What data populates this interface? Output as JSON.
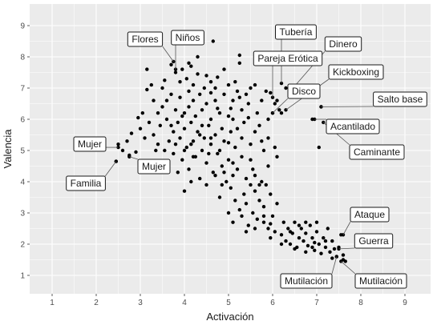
{
  "chart_data": {
    "type": "scatter",
    "xlabel": "Activación",
    "ylabel": "Valencia",
    "xlim": [
      0.3,
      9.5
    ],
    "ylim": [
      0.6,
      9.5
    ],
    "xticks": [
      1,
      2,
      3,
      4,
      5,
      6,
      7,
      8,
      9
    ],
    "yticks": [
      1,
      2,
      3,
      4,
      5,
      6,
      7,
      8,
      9
    ],
    "grid": true,
    "colors": {
      "panel": "#ebebeb",
      "grid": "#ffffff",
      "point": "#000000"
    },
    "labels": [
      {
        "text": "Flores",
        "x": 3.75,
        "y": 7.85
      },
      {
        "text": "Niños",
        "x": 3.8,
        "y": 7.6
      },
      {
        "text": "Tubería",
        "x": 6.2,
        "y": 7.15
      },
      {
        "text": "Dinero",
        "x": 6.4,
        "y": 6.9
      },
      {
        "text": "Pareja Erótica",
        "x": 6.0,
        "y": 6.7
      },
      {
        "text": "Kickboxing",
        "x": 6.3,
        "y": 6.3
      },
      {
        "text": "Disco",
        "x": 6.0,
        "y": 6.2
      },
      {
        "text": "Salto base",
        "x": 7.1,
        "y": 6.4
      },
      {
        "text": "Acantilado",
        "x": 6.95,
        "y": 6.0
      },
      {
        "text": "Caminante",
        "x": 7.15,
        "y": 5.9
      },
      {
        "text": "Mujer",
        "x": 2.5,
        "y": 5.1
      },
      {
        "text": "Mujer",
        "x": 2.75,
        "y": 4.8
      },
      {
        "text": "Familia",
        "x": 2.45,
        "y": 4.65
      },
      {
        "text": "Ataque",
        "x": 7.6,
        "y": 2.3
      },
      {
        "text": "Guerra",
        "x": 7.5,
        "y": 1.85
      },
      {
        "text": "Mutilación",
        "x": 7.45,
        "y": 1.6
      },
      {
        "text": "Mutilación",
        "x": 7.55,
        "y": 1.45
      }
    ],
    "points": [
      [
        2.5,
        5.2
      ],
      [
        2.45,
        4.65
      ],
      [
        2.6,
        5.0
      ],
      [
        2.7,
        5.3
      ],
      [
        2.75,
        4.85
      ],
      [
        2.8,
        5.55
      ],
      [
        2.9,
        4.95
      ],
      [
        2.95,
        6.05
      ],
      [
        3.0,
        5.7
      ],
      [
        3.05,
        6.2
      ],
      [
        3.1,
        5.4
      ],
      [
        3.15,
        6.95
      ],
      [
        3.15,
        7.6
      ],
      [
        3.2,
        5.9
      ],
      [
        3.25,
        7.1
      ],
      [
        3.3,
        6.6
      ],
      [
        3.35,
        4.6
      ],
      [
        3.4,
        5.2
      ],
      [
        3.45,
        5.8
      ],
      [
        3.5,
        6.4
      ],
      [
        3.55,
        5.0
      ],
      [
        3.55,
        7.25
      ],
      [
        3.6,
        6.0
      ],
      [
        3.65,
        5.3
      ],
      [
        3.7,
        7.75
      ],
      [
        3.7,
        6.8
      ],
      [
        3.75,
        5.6
      ],
      [
        3.75,
        4.9
      ],
      [
        3.8,
        7.5
      ],
      [
        3.8,
        6.3
      ],
      [
        3.85,
        5.9
      ],
      [
        3.85,
        4.3
      ],
      [
        3.9,
        7.2
      ],
      [
        3.9,
        6.7
      ],
      [
        3.9,
        5.4
      ],
      [
        3.95,
        4.7
      ],
      [
        3.95,
        7.6
      ],
      [
        4.0,
        6.2
      ],
      [
        4.0,
        5.7
      ],
      [
        4.0,
        3.7
      ],
      [
        4.05,
        7.3
      ],
      [
        4.05,
        5.1
      ],
      [
        4.1,
        6.9
      ],
      [
        4.1,
        6.4
      ],
      [
        4.1,
        4.4
      ],
      [
        4.15,
        7.7
      ],
      [
        4.15,
        5.9
      ],
      [
        4.15,
        4.0
      ],
      [
        4.2,
        6.6
      ],
      [
        4.2,
        5.3
      ],
      [
        4.2,
        7.1
      ],
      [
        4.25,
        6.1
      ],
      [
        4.25,
        4.8
      ],
      [
        4.3,
        7.45
      ],
      [
        4.3,
        5.6
      ],
      [
        4.35,
        6.8
      ],
      [
        4.35,
        4.1
      ],
      [
        4.4,
        6.3
      ],
      [
        4.4,
        5.0
      ],
      [
        4.45,
        7.0
      ],
      [
        4.45,
        5.4
      ],
      [
        4.5,
        6.5
      ],
      [
        4.5,
        4.6
      ],
      [
        4.5,
        3.9
      ],
      [
        4.55,
        5.8
      ],
      [
        4.6,
        7.2
      ],
      [
        4.6,
        6.0
      ],
      [
        4.6,
        5.2
      ],
      [
        4.65,
        4.3
      ],
      [
        4.65,
        8.5
      ],
      [
        4.7,
        6.6
      ],
      [
        4.7,
        5.5
      ],
      [
        4.75,
        7.35
      ],
      [
        4.75,
        4.9
      ],
      [
        4.8,
        6.2
      ],
      [
        4.8,
        5.0
      ],
      [
        4.8,
        3.5
      ],
      [
        4.85,
        5.7
      ],
      [
        4.85,
        4.5
      ],
      [
        4.9,
        6.8
      ],
      [
        4.9,
        5.3
      ],
      [
        4.95,
        4.0
      ],
      [
        5.0,
        7.1
      ],
      [
        5.0,
        6.1
      ],
      [
        5.0,
        4.7
      ],
      [
        5.0,
        3.0
      ],
      [
        5.05,
        5.6
      ],
      [
        5.05,
        3.8
      ],
      [
        5.1,
        6.6
      ],
      [
        5.1,
        4.2
      ],
      [
        5.1,
        2.7
      ],
      [
        5.15,
        7.2
      ],
      [
        5.15,
        5.1
      ],
      [
        5.15,
        3.4
      ],
      [
        5.2,
        6.9
      ],
      [
        5.2,
        4.4
      ],
      [
        5.25,
        8.05
      ],
      [
        5.25,
        7.8
      ],
      [
        5.25,
        3.1
      ],
      [
        5.3,
        6.3
      ],
      [
        5.3,
        4.8
      ],
      [
        5.3,
        2.9
      ],
      [
        5.35,
        5.9
      ],
      [
        5.35,
        3.6
      ],
      [
        5.4,
        4.1
      ],
      [
        5.4,
        3.3
      ],
      [
        5.45,
        6.5
      ],
      [
        5.45,
        2.6
      ],
      [
        5.5,
        3.9
      ],
      [
        5.5,
        5.2
      ],
      [
        5.55,
        4.4
      ],
      [
        5.55,
        3.0
      ],
      [
        5.6,
        7.1
      ],
      [
        5.6,
        3.7
      ],
      [
        5.65,
        6.2
      ],
      [
        5.65,
        2.8
      ],
      [
        5.7,
        5.8
      ],
      [
        5.7,
        3.4
      ],
      [
        5.75,
        6.6
      ],
      [
        5.75,
        4.0
      ],
      [
        5.8,
        2.7
      ],
      [
        5.8,
        3.2
      ],
      [
        5.85,
        6.9
      ],
      [
        5.85,
        3.9
      ],
      [
        5.9,
        2.5
      ],
      [
        5.9,
        5.4
      ],
      [
        5.95,
        3.6
      ],
      [
        5.95,
        2.2
      ],
      [
        6.0,
        6.2
      ],
      [
        6.0,
        2.9
      ],
      [
        6.05,
        5.1
      ],
      [
        6.05,
        2.4
      ],
      [
        6.1,
        3.3
      ],
      [
        6.1,
        6.6
      ],
      [
        6.2,
        2.3
      ],
      [
        6.25,
        2.7
      ],
      [
        6.3,
        2.1
      ],
      [
        6.35,
        2.5
      ],
      [
        6.4,
        2.0
      ],
      [
        6.45,
        2.35
      ],
      [
        6.5,
        2.7
      ],
      [
        6.55,
        1.9
      ],
      [
        6.6,
        2.2
      ],
      [
        6.65,
        2.5
      ],
      [
        6.7,
        2.1
      ],
      [
        6.75,
        2.35
      ],
      [
        6.8,
        1.95
      ],
      [
        6.85,
        2.6
      ],
      [
        6.9,
        2.2
      ],
      [
        6.95,
        1.8
      ],
      [
        7.0,
        2.4
      ],
      [
        7.05,
        2.0
      ],
      [
        7.1,
        1.7
      ],
      [
        7.15,
        2.2
      ],
      [
        7.2,
        1.9
      ],
      [
        7.25,
        2.5
      ],
      [
        7.3,
        1.75
      ],
      [
        7.35,
        2.1
      ],
      [
        7.4,
        1.85
      ],
      [
        7.45,
        1.6
      ],
      [
        7.5,
        1.9
      ],
      [
        7.55,
        2.3
      ],
      [
        7.6,
        1.5
      ],
      [
        7.65,
        1.45
      ],
      [
        6.75,
        2.7
      ],
      [
        6.6,
        2.6
      ],
      [
        6.4,
        2.4
      ],
      [
        7.0,
        2.7
      ],
      [
        6.9,
        1.9
      ],
      [
        7.2,
        2.1
      ],
      [
        7.05,
        5.1
      ],
      [
        6.9,
        6.0
      ],
      [
        7.1,
        6.4
      ],
      [
        6.15,
        6.3
      ],
      [
        6.2,
        6.2
      ],
      [
        6.3,
        7.0
      ],
      [
        5.95,
        6.85
      ],
      [
        6.05,
        6.5
      ],
      [
        5.5,
        7.0
      ],
      [
        5.4,
        6.8
      ],
      [
        5.9,
        6.0
      ],
      [
        5.8,
        5.0
      ],
      [
        6.1,
        4.8
      ],
      [
        5.2,
        5.7
      ],
      [
        4.6,
        5.4
      ],
      [
        4.4,
        5.8
      ],
      [
        4.2,
        4.8
      ],
      [
        4.0,
        5.0
      ],
      [
        3.8,
        5.2
      ],
      [
        3.6,
        6.6
      ],
      [
        3.4,
        6.2
      ],
      [
        3.3,
        5.5
      ],
      [
        4.1,
        7.8
      ],
      [
        4.3,
        8.0
      ],
      [
        4.9,
        7.6
      ],
      [
        4.7,
        7.0
      ],
      [
        4.5,
        7.4
      ],
      [
        5.1,
        6.0
      ],
      [
        5.3,
        5.4
      ],
      [
        5.5,
        4.7
      ],
      [
        5.6,
        4.2
      ],
      [
        5.7,
        3.9
      ],
      [
        5.4,
        2.4
      ],
      [
        5.6,
        2.5
      ],
      [
        5.8,
        2.9
      ],
      [
        5.95,
        2.65
      ],
      [
        6.2,
        2.0
      ],
      [
        6.5,
        1.85
      ],
      [
        6.75,
        1.75
      ],
      [
        6.95,
        2.05
      ],
      [
        7.35,
        1.55
      ],
      [
        7.6,
        1.65
      ],
      [
        5.1,
        4.6
      ],
      [
        4.85,
        3.9
      ],
      [
        4.7,
        4.2
      ],
      [
        4.55,
        4.9
      ],
      [
        4.35,
        5.5
      ],
      [
        4.15,
        5.2
      ],
      [
        3.95,
        6.1
      ],
      [
        3.7,
        5.8
      ],
      [
        3.5,
        7.0
      ],
      [
        3.35,
        5.0
      ],
      [
        5.05,
        6.35
      ],
      [
        5.25,
        6.7
      ],
      [
        5.45,
        6.05
      ],
      [
        5.6,
        5.6
      ],
      [
        5.75,
        5.3
      ],
      [
        5.9,
        4.5
      ],
      [
        5.0,
        5.25
      ],
      [
        4.9,
        4.3
      ],
      [
        4.75,
        6.35
      ],
      [
        4.6,
        6.85
      ]
    ]
  }
}
